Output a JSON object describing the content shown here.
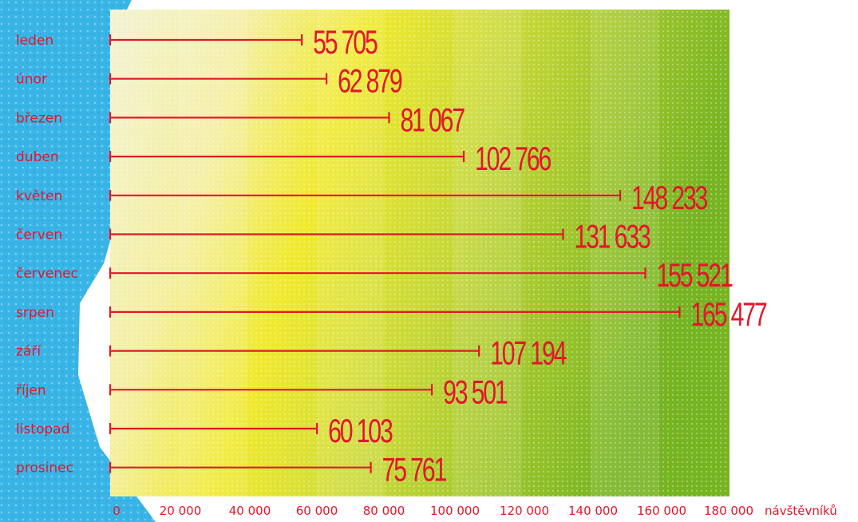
{
  "chart_data": {
    "type": "bar",
    "orientation": "horizontal",
    "categories": [
      "leden",
      "únor",
      "březen",
      "duben",
      "květen",
      "červen",
      "červenec",
      "srpen",
      "září",
      "říjen",
      "listopad",
      "prosinec"
    ],
    "values": [
      55705,
      62879,
      81067,
      102766,
      148233,
      131633,
      155521,
      165477,
      107194,
      93501,
      60103,
      75761
    ],
    "value_labels": [
      "55 705",
      "62 879",
      "81 067",
      "102 766",
      "148 233",
      "131 633",
      "155 521",
      "165 477",
      "107 194",
      "93 501",
      "60 103",
      "75 761"
    ],
    "x_ticks": [
      0,
      20000,
      40000,
      60000,
      80000,
      100000,
      120000,
      140000,
      160000,
      180000
    ],
    "x_tick_labels": [
      "0",
      "20 000",
      "40 000",
      "60 000",
      "80 000",
      "100 000",
      "120 000",
      "140 000",
      "160 000",
      "180 000"
    ],
    "xlabel": "návštěvníků",
    "xlim": [
      0,
      180000
    ],
    "grid": false,
    "colors": {
      "bars": "#e3162b",
      "labels": "#e3162b",
      "background_blue": "#34b3e6",
      "gradient_start": "#f3f3d3",
      "gradient_yellow": "#f2ea2c",
      "gradient_end": "#7fb723"
    }
  }
}
